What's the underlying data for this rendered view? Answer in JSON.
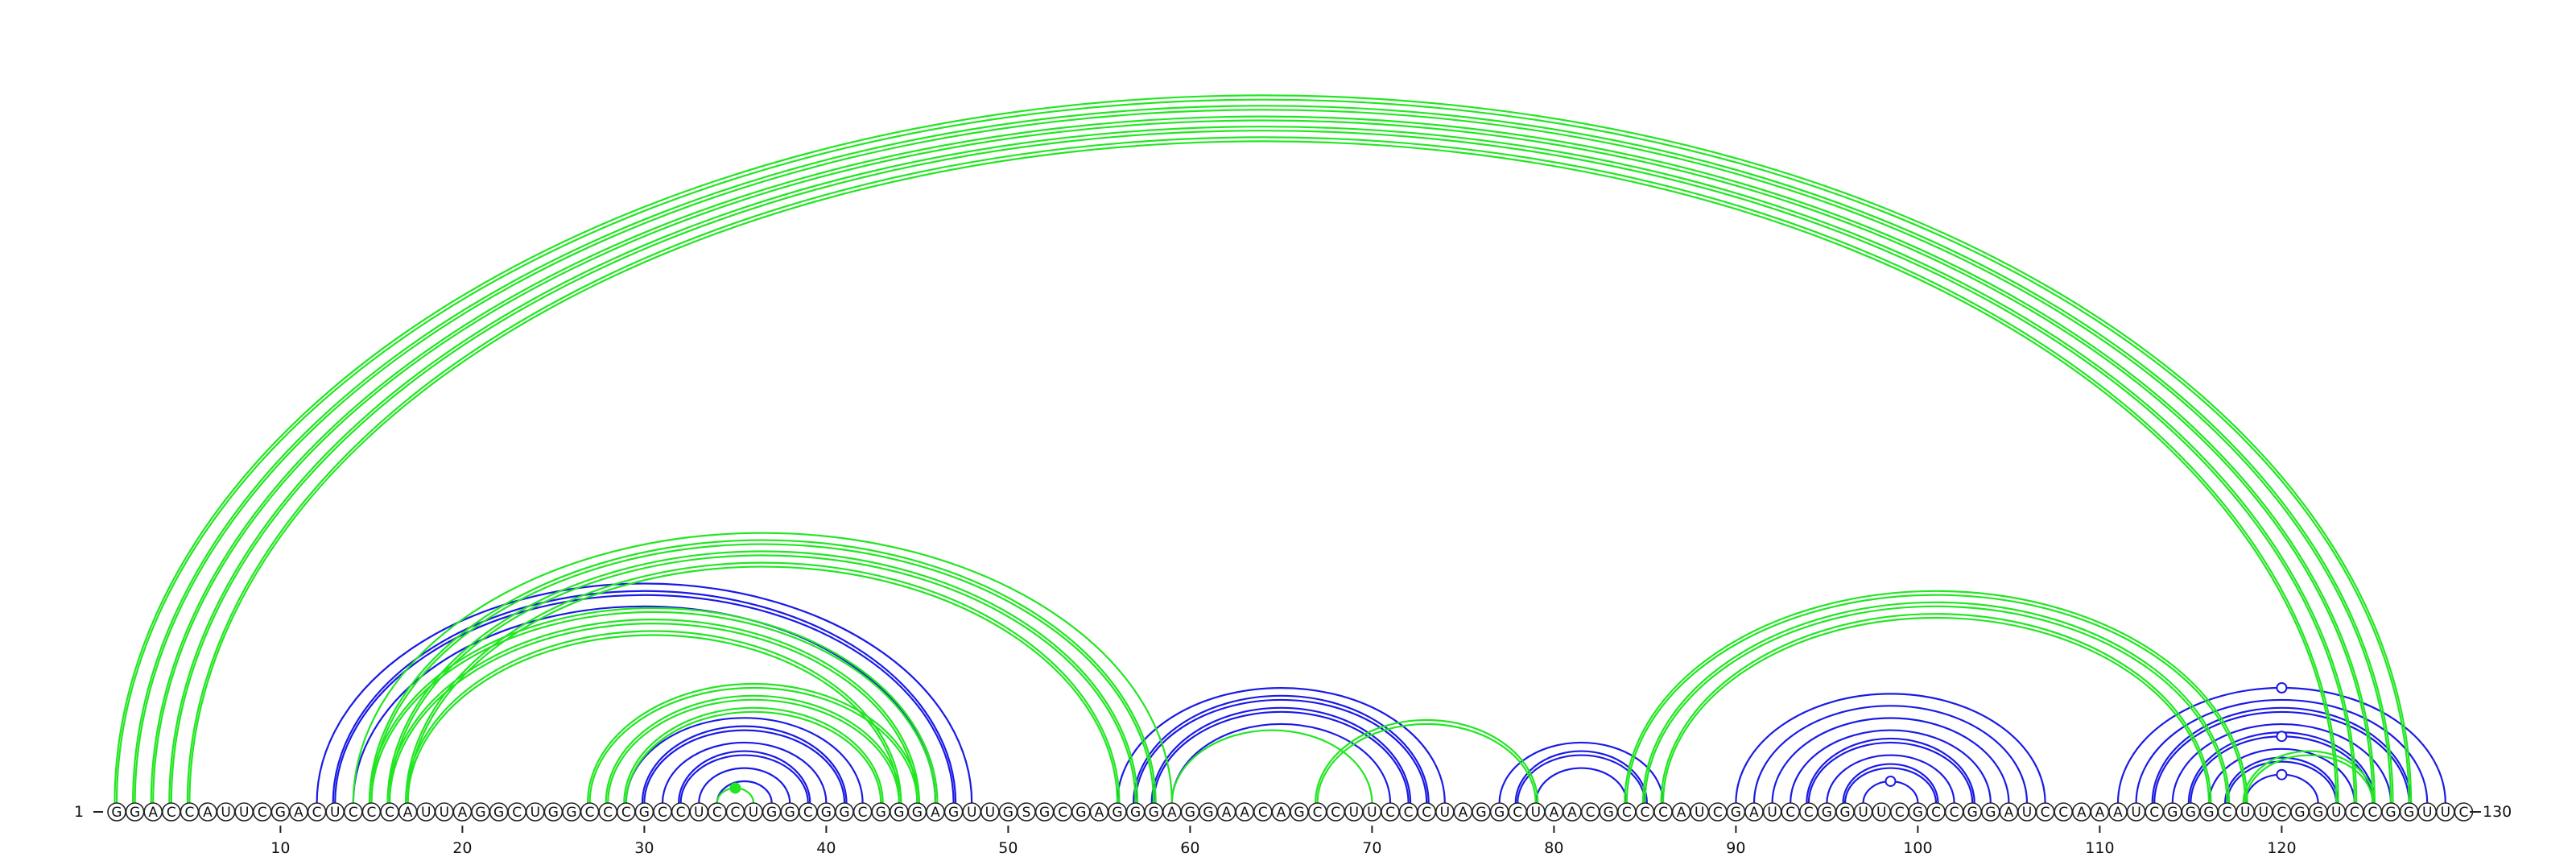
{
  "diagram": {
    "sequence": "GGACCAUUCGACUCCCAUUAGGCUGGCCCGCCUCCUGGCGGCGGGAGUUGSGCGAGGGAGGAACAGCCUUCCCUAGGCUAACGCCCAUCGAUCCGGUUCGCCGGAUCCAAAUCGGGCUUCGGUCCGGUUC",
    "start_label": "1",
    "end_label": "130",
    "tick_positions": [
      10,
      20,
      30,
      40,
      50,
      60,
      70,
      80,
      90,
      100,
      110,
      120
    ],
    "colors": {
      "blue": "#1a1ae6",
      "green": "#22e622"
    },
    "green_arcs": [
      {
        "i": 1,
        "j": 127,
        "lines": 2
      },
      {
        "i": 2,
        "j": 126,
        "lines": 2
      },
      {
        "i": 3,
        "j": 125,
        "lines": 2
      },
      {
        "i": 4,
        "j": 124,
        "lines": 2
      },
      {
        "i": 5,
        "j": 123,
        "lines": 2
      },
      {
        "i": 14,
        "j": 59,
        "lines": 1
      },
      {
        "i": 15,
        "j": 58,
        "lines": 2
      },
      {
        "i": 16,
        "j": 57,
        "lines": 2
      },
      {
        "i": 17,
        "j": 56,
        "lines": 2
      },
      {
        "i": 15,
        "j": 46,
        "lines": 2
      },
      {
        "i": 16,
        "j": 45,
        "lines": 2
      },
      {
        "i": 17,
        "j": 44,
        "lines": 2
      },
      {
        "i": 27,
        "j": 45,
        "lines": 2
      },
      {
        "i": 28,
        "j": 44,
        "lines": 2
      },
      {
        "i": 29,
        "j": 43,
        "lines": 2
      },
      {
        "i": 34,
        "j": 36,
        "lines": 1,
        "dot": true
      },
      {
        "i": 59,
        "j": 70,
        "lines": 1
      },
      {
        "i": 67,
        "j": 79,
        "lines": 2
      },
      {
        "i": 84,
        "j": 118,
        "lines": 2
      },
      {
        "i": 85,
        "j": 117,
        "lines": 2
      },
      {
        "i": 86,
        "j": 116,
        "lines": 2
      },
      {
        "i": 118,
        "j": 125,
        "lines": 2
      }
    ],
    "blue_arcs": [
      {
        "i": 12,
        "j": 48,
        "lines": 1
      },
      {
        "i": 13,
        "j": 47,
        "lines": 2
      },
      {
        "i": 14,
        "j": 46,
        "lines": 1
      },
      {
        "i": 29,
        "j": 42,
        "lines": 1
      },
      {
        "i": 30,
        "j": 41,
        "lines": 2
      },
      {
        "i": 31,
        "j": 40,
        "lines": 1
      },
      {
        "i": 32,
        "j": 39,
        "lines": 2
      },
      {
        "i": 33,
        "j": 38,
        "lines": 1
      },
      {
        "i": 34,
        "j": 37,
        "lines": 1
      },
      {
        "i": 56,
        "j": 74,
        "lines": 1
      },
      {
        "i": 57,
        "j": 73,
        "lines": 2
      },
      {
        "i": 58,
        "j": 72,
        "lines": 2
      },
      {
        "i": 59,
        "j": 71,
        "lines": 1
      },
      {
        "i": 77,
        "j": 86,
        "lines": 1
      },
      {
        "i": 78,
        "j": 85,
        "lines": 2
      },
      {
        "i": 79,
        "j": 84,
        "lines": 1
      },
      {
        "i": 90,
        "j": 107,
        "lines": 1
      },
      {
        "i": 91,
        "j": 106,
        "lines": 1
      },
      {
        "i": 92,
        "j": 105,
        "lines": 1
      },
      {
        "i": 93,
        "j": 104,
        "lines": 1
      },
      {
        "i": 94,
        "j": 103,
        "lines": 2
      },
      {
        "i": 95,
        "j": 102,
        "lines": 1
      },
      {
        "i": 96,
        "j": 101,
        "lines": 2
      },
      {
        "i": 97,
        "j": 100,
        "lines": 1,
        "dot": true
      },
      {
        "i": 111,
        "j": 129,
        "lines": 1,
        "dot": true
      },
      {
        "i": 112,
        "j": 128,
        "lines": 1
      },
      {
        "i": 113,
        "j": 127,
        "lines": 2
      },
      {
        "i": 114,
        "j": 126,
        "lines": 1
      },
      {
        "i": 115,
        "j": 125,
        "lines": 2,
        "dot": true
      },
      {
        "i": 116,
        "j": 124,
        "lines": 1
      },
      {
        "i": 117,
        "j": 123,
        "lines": 2
      },
      {
        "i": 118,
        "j": 122,
        "lines": 1,
        "dot": true
      }
    ]
  }
}
